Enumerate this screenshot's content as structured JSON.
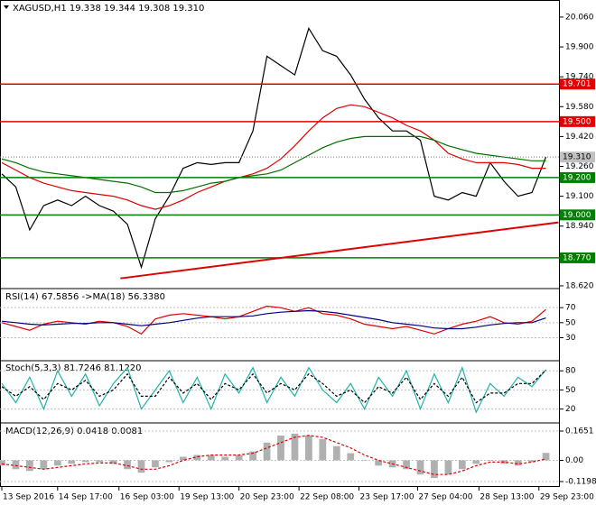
{
  "chart_data": [
    {
      "type": "line",
      "title": "XAGUSD,H1  19.338 19.344 19.308 19.310",
      "xlim": [
        0,
        40
      ],
      "xticks": [
        {
          "value": 0,
          "label": "13 Sep 2016"
        },
        {
          "value": 4,
          "label": "14 Sep 17:00"
        },
        {
          "value": 8.4,
          "label": "16 Sep 03:00"
        },
        {
          "value": 12.7,
          "label": "19 Sep 13:00"
        },
        {
          "value": 17,
          "label": "20 Sep 23:00"
        },
        {
          "value": 21.3,
          "label": "22 Sep 08:00"
        },
        {
          "value": 25.6,
          "label": "23 Sep 17:00"
        },
        {
          "value": 29.8,
          "label": "27 Sep 04:00"
        },
        {
          "value": 34.2,
          "label": "28 Sep 13:00"
        },
        {
          "value": 38.5,
          "label": "29 Sep 23:00"
        }
      ],
      "ylim": [
        18.615,
        20.137
      ],
      "yticks": [
        {
          "value": 20.06,
          "label": "20.060"
        },
        {
          "value": 19.9,
          "label": "19.900"
        },
        {
          "value": 19.74,
          "label": "19.740"
        },
        {
          "value": 19.58,
          "label": "19.580"
        },
        {
          "value": 19.42,
          "label": "19.420"
        },
        {
          "value": 19.26,
          "label": "19.260"
        },
        {
          "value": 19.1,
          "label": "19.100"
        },
        {
          "value": 18.94,
          "label": "18.940"
        },
        {
          "value": 18.62,
          "label": "18.620"
        }
      ],
      "series": [
        {
          "color": "#000000",
          "values": [
            19.22,
            19.15,
            18.92,
            19.05,
            19.08,
            19.05,
            19.1,
            19.05,
            19.02,
            18.95,
            18.72,
            18.98,
            19.1,
            19.25,
            19.28,
            19.27,
            19.28,
            19.28,
            19.45,
            19.85,
            19.8,
            19.75,
            20.0,
            19.88,
            19.85,
            19.75,
            19.62,
            19.52,
            19.45,
            19.45,
            19.4,
            19.1,
            19.08,
            19.12,
            19.1,
            19.28,
            19.18,
            19.1,
            19.12,
            19.31
          ]
        },
        {
          "color": "#e00000",
          "values": [
            19.28,
            19.24,
            19.2,
            19.17,
            19.15,
            19.13,
            19.12,
            19.11,
            19.1,
            19.08,
            19.05,
            19.03,
            19.05,
            19.08,
            19.12,
            19.15,
            19.18,
            19.2,
            19.22,
            19.25,
            19.3,
            19.37,
            19.45,
            19.52,
            19.57,
            19.59,
            19.58,
            19.55,
            19.52,
            19.48,
            19.45,
            19.4,
            19.33,
            19.3,
            19.28,
            19.28,
            19.28,
            19.27,
            19.25,
            19.25
          ]
        },
        {
          "color": "#007000",
          "values": [
            19.3,
            19.28,
            19.25,
            19.23,
            19.22,
            19.21,
            19.2,
            19.19,
            19.18,
            19.17,
            19.15,
            19.12,
            19.12,
            19.13,
            19.15,
            19.17,
            19.18,
            19.2,
            19.21,
            19.22,
            19.24,
            19.28,
            19.32,
            19.36,
            19.39,
            19.41,
            19.42,
            19.42,
            19.42,
            19.42,
            19.42,
            19.4,
            19.37,
            19.35,
            19.33,
            19.32,
            19.31,
            19.3,
            19.29,
            19.29
          ]
        }
      ],
      "hlines": [
        {
          "value": 19.701,
          "color": "#e00000",
          "label": "19.701"
        },
        {
          "value": 19.5,
          "color": "#e00000",
          "label": "19.500"
        },
        {
          "value": 19.2,
          "color": "#008000",
          "label": "19.200"
        },
        {
          "value": 19.0,
          "color": "#008000",
          "label": "19.000"
        },
        {
          "value": 18.77,
          "color": "#008000",
          "label": "18.770"
        }
      ],
      "last": {
        "value": 19.31,
        "label": "19.310",
        "color": "#c0c0c0"
      },
      "trendline": {
        "x": [
          8.5,
          39.9
        ],
        "values": [
          18.66,
          18.96
        ],
        "color": "#e00000"
      }
    },
    {
      "type": "line",
      "title": "RSI(14) 67.5856  ->MA(18) 56.3380",
      "ylim": [
        3,
        93
      ],
      "yticks": [
        70,
        50,
        30
      ],
      "series": [
        {
          "color": "#e00000",
          "values": [
            50,
            45,
            40,
            48,
            52,
            50,
            48,
            52,
            50,
            45,
            35,
            55,
            60,
            62,
            60,
            58,
            55,
            58,
            65,
            72,
            70,
            65,
            70,
            62,
            60,
            55,
            48,
            45,
            42,
            45,
            40,
            35,
            42,
            48,
            52,
            58,
            50,
            48,
            52,
            67.5856
          ]
        },
        {
          "color": "#000080",
          "values": [
            52,
            50,
            48,
            47,
            48,
            49,
            49,
            50,
            50,
            48,
            46,
            48,
            50,
            53,
            56,
            58,
            58,
            58,
            59,
            62,
            64,
            65,
            66,
            65,
            63,
            60,
            57,
            54,
            50,
            48,
            46,
            43,
            42,
            42,
            44,
            47,
            49,
            50,
            50,
            56.338
          ]
        }
      ]
    },
    {
      "type": "line",
      "title": "Stoch(5,3,3) 81.7246 81.1220",
      "ylim": [
        1,
        93
      ],
      "yticks": [
        80,
        50,
        20
      ],
      "series": [
        {
          "color": "#20b2aa",
          "values": [
            60,
            30,
            70,
            20,
            80,
            40,
            75,
            25,
            60,
            85,
            20,
            50,
            80,
            30,
            70,
            20,
            75,
            45,
            85,
            30,
            70,
            40,
            85,
            50,
            30,
            60,
            20,
            70,
            40,
            80,
            20,
            75,
            30,
            85,
            15,
            60,
            40,
            70,
            55,
            81.7246
          ]
        },
        {
          "color": "#000000",
          "dashed": true,
          "values": [
            55,
            40,
            55,
            35,
            60,
            50,
            65,
            40,
            50,
            75,
            40,
            40,
            70,
            45,
            60,
            35,
            60,
            50,
            75,
            45,
            60,
            50,
            75,
            60,
            40,
            50,
            30,
            55,
            45,
            70,
            35,
            60,
            40,
            70,
            30,
            45,
            45,
            60,
            60,
            81.122
          ]
        }
      ]
    },
    {
      "type": "bar",
      "title": "MACD(12,26,9) 0.0418 0.0081",
      "ylim": [
        -0.1452,
        0.2007
      ],
      "yticks": [
        0.1651,
        {
          "value": 0,
          "label": "0.00"
        },
        -0.1198
      ],
      "series": [
        {
          "color": "#b0b0b0",
          "values": [
            -0.03,
            -0.05,
            -0.06,
            -0.05,
            -0.03,
            -0.02,
            -0.01,
            -0.01,
            -0.02,
            -0.05,
            -0.07,
            -0.04,
            -0.01,
            0.02,
            0.03,
            0.03,
            0.02,
            0.03,
            0.05,
            0.1,
            0.14,
            0.15,
            0.14,
            0.12,
            0.08,
            0.04,
            0.0,
            -0.03,
            -0.04,
            -0.05,
            -0.08,
            -0.1,
            -0.08,
            -0.05,
            -0.02,
            0.0,
            -0.02,
            -0.03,
            -0.01,
            0.0418
          ]
        },
        {
          "color": "#e00000",
          "dashed": true,
          "values": [
            -0.02,
            -0.03,
            -0.04,
            -0.05,
            -0.04,
            -0.03,
            -0.02,
            -0.015,
            -0.015,
            -0.03,
            -0.05,
            -0.05,
            -0.03,
            0.0,
            0.02,
            0.03,
            0.03,
            0.03,
            0.04,
            0.07,
            0.1,
            0.13,
            0.14,
            0.13,
            0.1,
            0.07,
            0.03,
            0.0,
            -0.02,
            -0.04,
            -0.06,
            -0.08,
            -0.08,
            -0.06,
            -0.03,
            -0.01,
            -0.01,
            -0.02,
            -0.01,
            0.0081
          ]
        }
      ]
    }
  ]
}
